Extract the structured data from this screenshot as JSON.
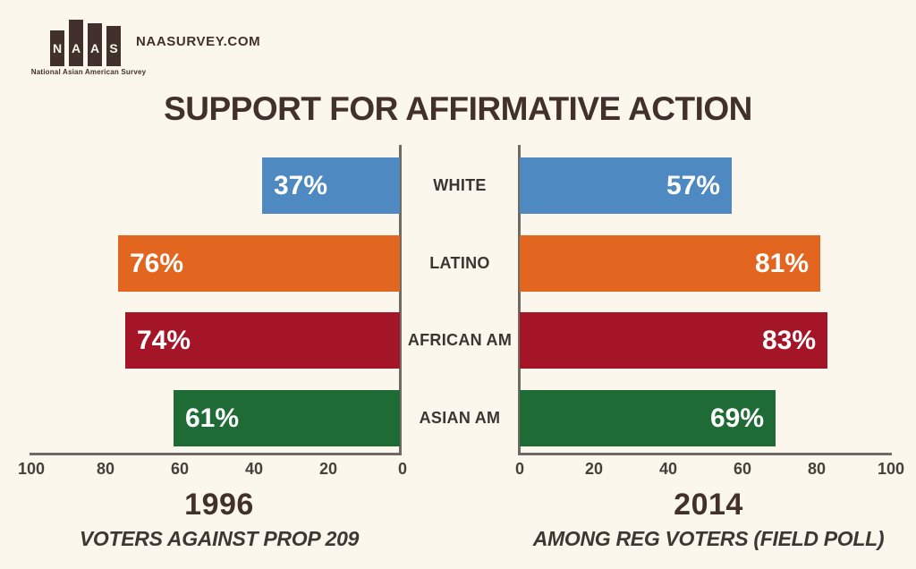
{
  "header": {
    "site": "NAASURVEY.COM",
    "logo_letters": [
      "N",
      "A",
      "A",
      "S"
    ],
    "logo_tagline": "National Asian American Survey",
    "title": "SUPPORT FOR AFFIRMATIVE ACTION"
  },
  "colors": {
    "background": "#FBF7EC",
    "title_text": "#41302C",
    "bar_value_text": "#FFFFFF",
    "category_text": "#3B3531",
    "tick_text": "#46403A",
    "axis_line": "#6F6B64",
    "row_colors": [
      "#4E8AC1",
      "#E2661F",
      "#A41527",
      "#1E6B36"
    ]
  },
  "categories": [
    "WHITE",
    "LATINO",
    "AFRICAN AM",
    "ASIAN AM"
  ],
  "chart_data": [
    {
      "type": "bar",
      "orientation": "horizontal",
      "direction": "right-to-left",
      "year_label": "1996",
      "caption": "VOTERS AGAINST PROP 209",
      "categories": [
        "WHITE",
        "LATINO",
        "AFRICAN AM",
        "ASIAN AM"
      ],
      "values": [
        37,
        76,
        74,
        61
      ],
      "data_labels": [
        "37%",
        "76%",
        "74%",
        "61%"
      ],
      "bar_colors": [
        "#4E8AC1",
        "#E2661F",
        "#A41527",
        "#1E6B36"
      ],
      "x_ticks": [
        100,
        80,
        60,
        40,
        20,
        0
      ],
      "xlim": [
        0,
        100
      ],
      "grid": false,
      "legend": "none"
    },
    {
      "type": "bar",
      "orientation": "horizontal",
      "direction": "left-to-right",
      "year_label": "2014",
      "caption": "AMONG REG VOTERS (FIELD POLL)",
      "categories": [
        "WHITE",
        "LATINO",
        "AFRICAN AM",
        "ASIAN AM"
      ],
      "values": [
        57,
        81,
        83,
        69
      ],
      "data_labels": [
        "57%",
        "81%",
        "83%",
        "69%"
      ],
      "bar_colors": [
        "#4E8AC1",
        "#E2661F",
        "#A41527",
        "#1E6B36"
      ],
      "x_ticks": [
        0,
        20,
        40,
        60,
        80,
        100
      ],
      "xlim": [
        0,
        100
      ],
      "grid": false,
      "legend": "none"
    }
  ]
}
